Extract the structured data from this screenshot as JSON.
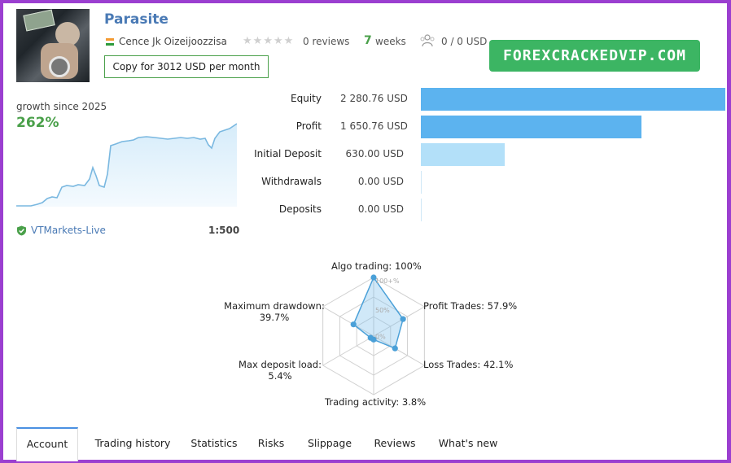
{
  "signal": {
    "name": "Parasite",
    "owner": "Cence Jk Oizeijoozzisa",
    "reviews_text": "0 reviews",
    "weeks_num": "7",
    "weeks_label": "weeks",
    "subscribers": "0 / 0 USD",
    "copy_button": "Copy for 3012 USD per month"
  },
  "watermark": "FOREXCRACKEDVIP.COM",
  "growth": {
    "label": "growth since 2025",
    "value": "262%",
    "broker": "VTMarkets-Live",
    "leverage": "1:500"
  },
  "stats": [
    {
      "label": "Equity",
      "value": "2 280.76 USD",
      "amount": 2280.76
    },
    {
      "label": "Profit",
      "value": "1 650.76 USD",
      "amount": 1650.76
    },
    {
      "label": "Initial Deposit",
      "value": "630.00 USD",
      "amount": 630.0
    },
    {
      "label": "Withdrawals",
      "value": "0.00 USD",
      "amount": 0
    },
    {
      "label": "Deposits",
      "value": "0.00 USD",
      "amount": 0
    }
  ],
  "radar": {
    "axes": [
      {
        "label": "Algo trading: 100%",
        "value": 100
      },
      {
        "label": "Profit Trades: 57.9%",
        "value": 57.9
      },
      {
        "label": "Loss Trades: 42.1%",
        "value": 42.1
      },
      {
        "label": "Trading activity: 3.8%",
        "value": 3.8
      },
      {
        "label_line1": "Max deposit load:",
        "label_line2": "5.4%",
        "value": 5.4
      },
      {
        "label_line1": "Maximum drawdown:",
        "label_line2": "39.7%",
        "value": 39.7
      }
    ],
    "ticks": [
      "100+%",
      "50%",
      "0%"
    ]
  },
  "tabs": [
    "Account",
    "Trading history",
    "Statistics",
    "Risks",
    "Slippage",
    "Reviews",
    "What's new"
  ],
  "colors": {
    "accent_blue": "#4a7ab5",
    "green": "#4aa04a",
    "bar_dark": "#5cb3ef",
    "bar_light": "#b3e0f9",
    "watermark_bg": "#3cb563"
  }
}
